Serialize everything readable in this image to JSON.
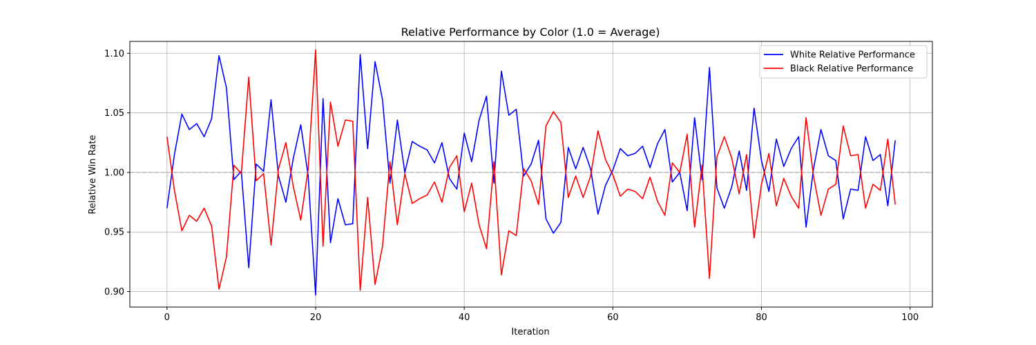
{
  "chart_data": {
    "type": "line",
    "title": "Relative Performance by Color (1.0 = Average)",
    "xlabel": "Iteration",
    "ylabel": "Relative Win Rate",
    "xlim": [
      -5,
      103
    ],
    "ylim": [
      0.887,
      1.11
    ],
    "xticks": [
      0,
      20,
      40,
      60,
      80,
      100
    ],
    "xtick_labels": [
      "0",
      "20",
      "40",
      "60",
      "80",
      "100"
    ],
    "yticks": [
      0.9,
      0.95,
      1.0,
      1.05,
      1.1
    ],
    "ytick_labels": [
      "0.90",
      "0.95",
      "1.00",
      "1.05",
      "1.10"
    ],
    "grid": true,
    "legend_position": "top-right",
    "reference_line": {
      "y": 1.0,
      "style": "dashed",
      "color": "#aaaaaa"
    },
    "series": [
      {
        "name": "White Relative Performance",
        "color": "#0000ff",
        "x": [
          0,
          1,
          2,
          3,
          4,
          5,
          6,
          7,
          8,
          9,
          10,
          11,
          12,
          13,
          14,
          15,
          16,
          17,
          18,
          19,
          20,
          21,
          22,
          23,
          24,
          25,
          26,
          27,
          28,
          29,
          30,
          31,
          32,
          33,
          34,
          35,
          36,
          37,
          38,
          39,
          40,
          41,
          42,
          43,
          44,
          45,
          46,
          47,
          48,
          49,
          50,
          51,
          52,
          53,
          54,
          55,
          56,
          57,
          58,
          59,
          60,
          61,
          62,
          63,
          64,
          65,
          66,
          67,
          68,
          69,
          70,
          71,
          72,
          73,
          74,
          75,
          76,
          77,
          78,
          79,
          80,
          81,
          82,
          83,
          84,
          85,
          86,
          87,
          88,
          89,
          90,
          91,
          92,
          93,
          94,
          95,
          96,
          97,
          98
        ],
        "values": [
          0.97,
          1.015,
          1.049,
          1.036,
          1.041,
          1.03,
          1.045,
          1.098,
          1.071,
          0.994,
          1.001,
          0.92,
          1.007,
          1.001,
          1.061,
          0.997,
          0.975,
          1.012,
          1.04,
          0.997,
          0.897,
          1.062,
          0.941,
          0.978,
          0.956,
          0.957,
          1.099,
          1.02,
          1.093,
          1.061,
          0.991,
          1.044,
          1.0,
          1.026,
          1.022,
          1.019,
          1.008,
          1.025,
          0.995,
          0.986,
          1.033,
          1.009,
          1.044,
          1.064,
          0.991,
          1.085,
          1.048,
          1.053,
          0.997,
          1.007,
          1.027,
          0.961,
          0.949,
          0.958,
          1.021,
          1.003,
          1.021,
          1.003,
          0.965,
          0.989,
          1.002,
          1.02,
          1.014,
          1.016,
          1.022,
          1.004,
          1.024,
          1.036,
          0.992,
          1.0,
          0.968,
          1.046,
          0.994,
          1.088,
          0.987,
          0.97,
          0.988,
          1.018,
          0.985,
          1.054,
          1.01,
          0.984,
          1.028,
          1.005,
          1.02,
          1.03,
          0.954,
          1.003,
          1.036,
          1.014,
          1.01,
          0.961,
          0.986,
          0.985,
          1.03,
          1.01,
          1.015,
          0.972,
          1.027
        ]
      },
      {
        "name": "Black Relative Performance",
        "color": "#ff0000",
        "x": [
          0,
          1,
          2,
          3,
          4,
          5,
          6,
          7,
          8,
          9,
          10,
          11,
          12,
          13,
          14,
          15,
          16,
          17,
          18,
          19,
          20,
          21,
          22,
          23,
          24,
          25,
          26,
          27,
          28,
          29,
          30,
          31,
          32,
          33,
          34,
          35,
          36,
          37,
          38,
          39,
          40,
          41,
          42,
          43,
          44,
          45,
          46,
          47,
          48,
          49,
          50,
          51,
          52,
          53,
          54,
          55,
          56,
          57,
          58,
          59,
          60,
          61,
          62,
          63,
          64,
          65,
          66,
          67,
          68,
          69,
          70,
          71,
          72,
          73,
          74,
          75,
          76,
          77,
          78,
          79,
          80,
          81,
          82,
          83,
          84,
          85,
          86,
          87,
          88,
          89,
          90,
          91,
          92,
          93,
          94,
          95,
          96,
          97,
          98
        ],
        "values": [
          1.03,
          0.985,
          0.951,
          0.964,
          0.959,
          0.97,
          0.955,
          0.902,
          0.929,
          1.006,
          0.999,
          1.08,
          0.993,
          0.999,
          0.939,
          1.003,
          1.025,
          0.988,
          0.96,
          1.003,
          1.103,
          0.938,
          1.059,
          1.022,
          1.044,
          1.043,
          0.901,
          0.979,
          0.906,
          0.938,
          1.009,
          0.956,
          0.999,
          0.974,
          0.978,
          0.981,
          0.992,
          0.975,
          1.004,
          1.014,
          0.967,
          0.991,
          0.956,
          0.936,
          1.009,
          0.914,
          0.951,
          0.947,
          1.003,
          0.993,
          0.973,
          1.039,
          1.051,
          1.042,
          0.979,
          0.997,
          0.979,
          0.997,
          1.035,
          1.011,
          0.998,
          0.98,
          0.986,
          0.984,
          0.978,
          0.996,
          0.976,
          0.964,
          1.008,
          1.0,
          1.032,
          0.954,
          1.006,
          0.911,
          1.013,
          1.03,
          1.012,
          0.982,
          1.015,
          0.945,
          0.99,
          1.016,
          0.972,
          0.995,
          0.98,
          0.97,
          1.046,
          0.997,
          0.964,
          0.986,
          0.99,
          1.039,
          1.014,
          1.015,
          0.97,
          0.99,
          0.985,
          1.028,
          0.973
        ]
      }
    ]
  }
}
